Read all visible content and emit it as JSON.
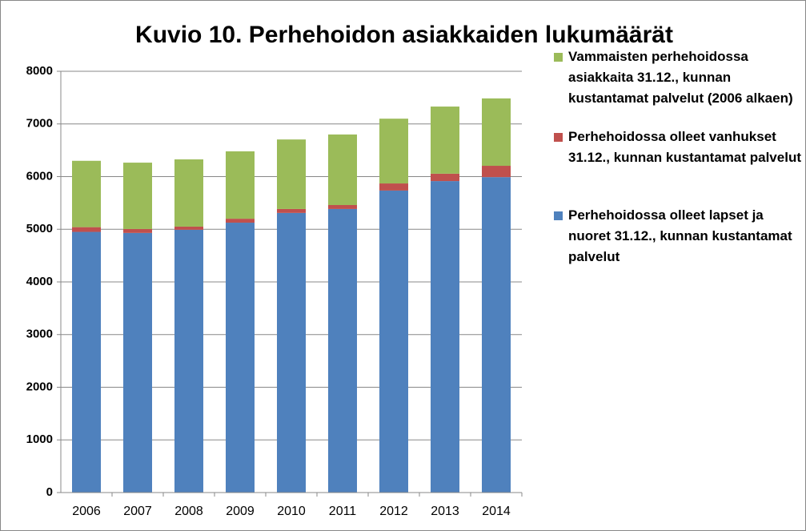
{
  "chart_data": {
    "type": "stacked_bar",
    "title": "Kuvio 10. Perhehoidon asiakkaiden lukumäärät",
    "categories": [
      "2006",
      "2007",
      "2008",
      "2009",
      "2010",
      "2011",
      "2012",
      "2013",
      "2014"
    ],
    "series": [
      {
        "name": "Perhehoidossa olleet lapset ja nuoret 31.12., kunnan kustantamat palvelut",
        "color": "#4f81bd",
        "values": [
          4950,
          4930,
          4990,
          5125,
          5310,
          5385,
          5735,
          5915,
          5990
        ]
      },
      {
        "name": "Perhehoidossa olleet vanhukset 31.12., kunnan kustantamat palvelut",
        "color": "#c0504d",
        "values": [
          90,
          75,
          60,
          75,
          75,
          75,
          135,
          140,
          215
        ]
      },
      {
        "name": "Vammaisten perhehoidossa asiakkaita 31.12., kunnan kustantamat palvelut (2006 alkaen)",
        "color": "#9bbb59",
        "values": [
          1260,
          1260,
          1277,
          1280,
          1320,
          1340,
          1230,
          1275,
          1280
        ]
      }
    ],
    "ylim": [
      0,
      8000
    ],
    "yticks": [
      0,
      1000,
      2000,
      3000,
      4000,
      5000,
      6000,
      7000,
      8000
    ],
    "grid": true,
    "legend": "right"
  }
}
